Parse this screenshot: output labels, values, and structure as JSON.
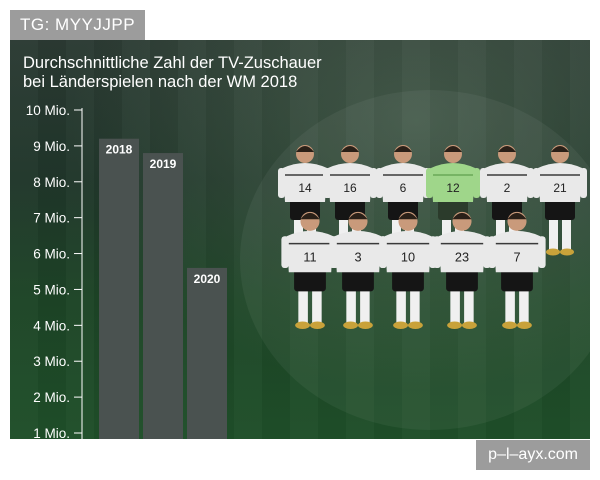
{
  "tags": {
    "telegram": "TG: MYYJJPP",
    "site": "p–l–ayx.com"
  },
  "chart_data": {
    "type": "bar",
    "title_lines": [
      "Durchschnittliche Zahl der TV-Zuschauer",
      "bei Länderspielen nach der WM 2018"
    ],
    "categories": [
      "2018",
      "2019",
      "2020"
    ],
    "values": [
      9.2,
      8.8,
      5.6
    ],
    "unit": "Mio.",
    "y_tick_labels": [
      "10 Mio.",
      "9 Mio.",
      "8 Mio.",
      "7 Mio.",
      "6 Mio.",
      "5 Mio.",
      "4 Mio.",
      "3 Mio.",
      "2 Mio.",
      "1 Mio."
    ],
    "y_ticks": [
      10,
      9,
      8,
      7,
      6,
      5,
      4,
      3,
      2,
      1
    ],
    "ylim": [
      1,
      10
    ],
    "grid": false,
    "colors": {
      "bar": "#4a5250",
      "panel": "#1f3f29"
    },
    "players_back_row": [
      "14",
      "16",
      "6",
      "12",
      "2",
      "21"
    ],
    "players_front_row": [
      "11",
      "3",
      "10",
      "23",
      "7"
    ]
  }
}
